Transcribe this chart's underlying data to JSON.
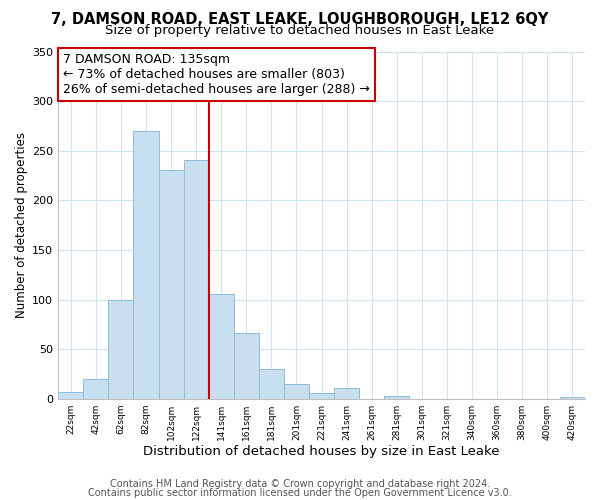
{
  "title1": "7, DAMSON ROAD, EAST LEAKE, LOUGHBOROUGH, LE12 6QY",
  "title2": "Size of property relative to detached houses in East Leake",
  "xlabel": "Distribution of detached houses by size in East Leake",
  "ylabel": "Number of detached properties",
  "bar_labels": [
    "22sqm",
    "42sqm",
    "62sqm",
    "82sqm",
    "102sqm",
    "122sqm",
    "141sqm",
    "161sqm",
    "181sqm",
    "201sqm",
    "221sqm",
    "241sqm",
    "261sqm",
    "281sqm",
    "301sqm",
    "321sqm",
    "340sqm",
    "360sqm",
    "380sqm",
    "400sqm",
    "420sqm"
  ],
  "bar_heights": [
    7,
    20,
    100,
    270,
    231,
    241,
    106,
    67,
    30,
    15,
    6,
    11,
    0,
    3,
    0,
    0,
    0,
    0,
    0,
    0,
    2
  ],
  "bar_color": "#c8dff0",
  "bar_edge_color": "#90bcd8",
  "vline_x": 5.5,
  "vline_color": "#cc0000",
  "ylim": [
    0,
    350
  ],
  "yticks": [
    0,
    50,
    100,
    150,
    200,
    250,
    300,
    350
  ],
  "annotation_title": "7 DAMSON ROAD: 135sqm",
  "annotation_line1": "← 73% of detached houses are smaller (803)",
  "annotation_line2": "26% of semi-detached houses are larger (288) →",
  "annotation_box_color": "#ffffff",
  "annotation_box_edge": "#cc0000",
  "footer1": "Contains HM Land Registry data © Crown copyright and database right 2024.",
  "footer2": "Contains public sector information licensed under the Open Government Licence v3.0.",
  "title1_fontsize": 10.5,
  "title2_fontsize": 9.5,
  "xlabel_fontsize": 9.5,
  "ylabel_fontsize": 8.5,
  "footer_fontsize": 7,
  "annotation_fontsize": 9,
  "grid_color": "#d0e4f0",
  "background_color": "#ffffff"
}
